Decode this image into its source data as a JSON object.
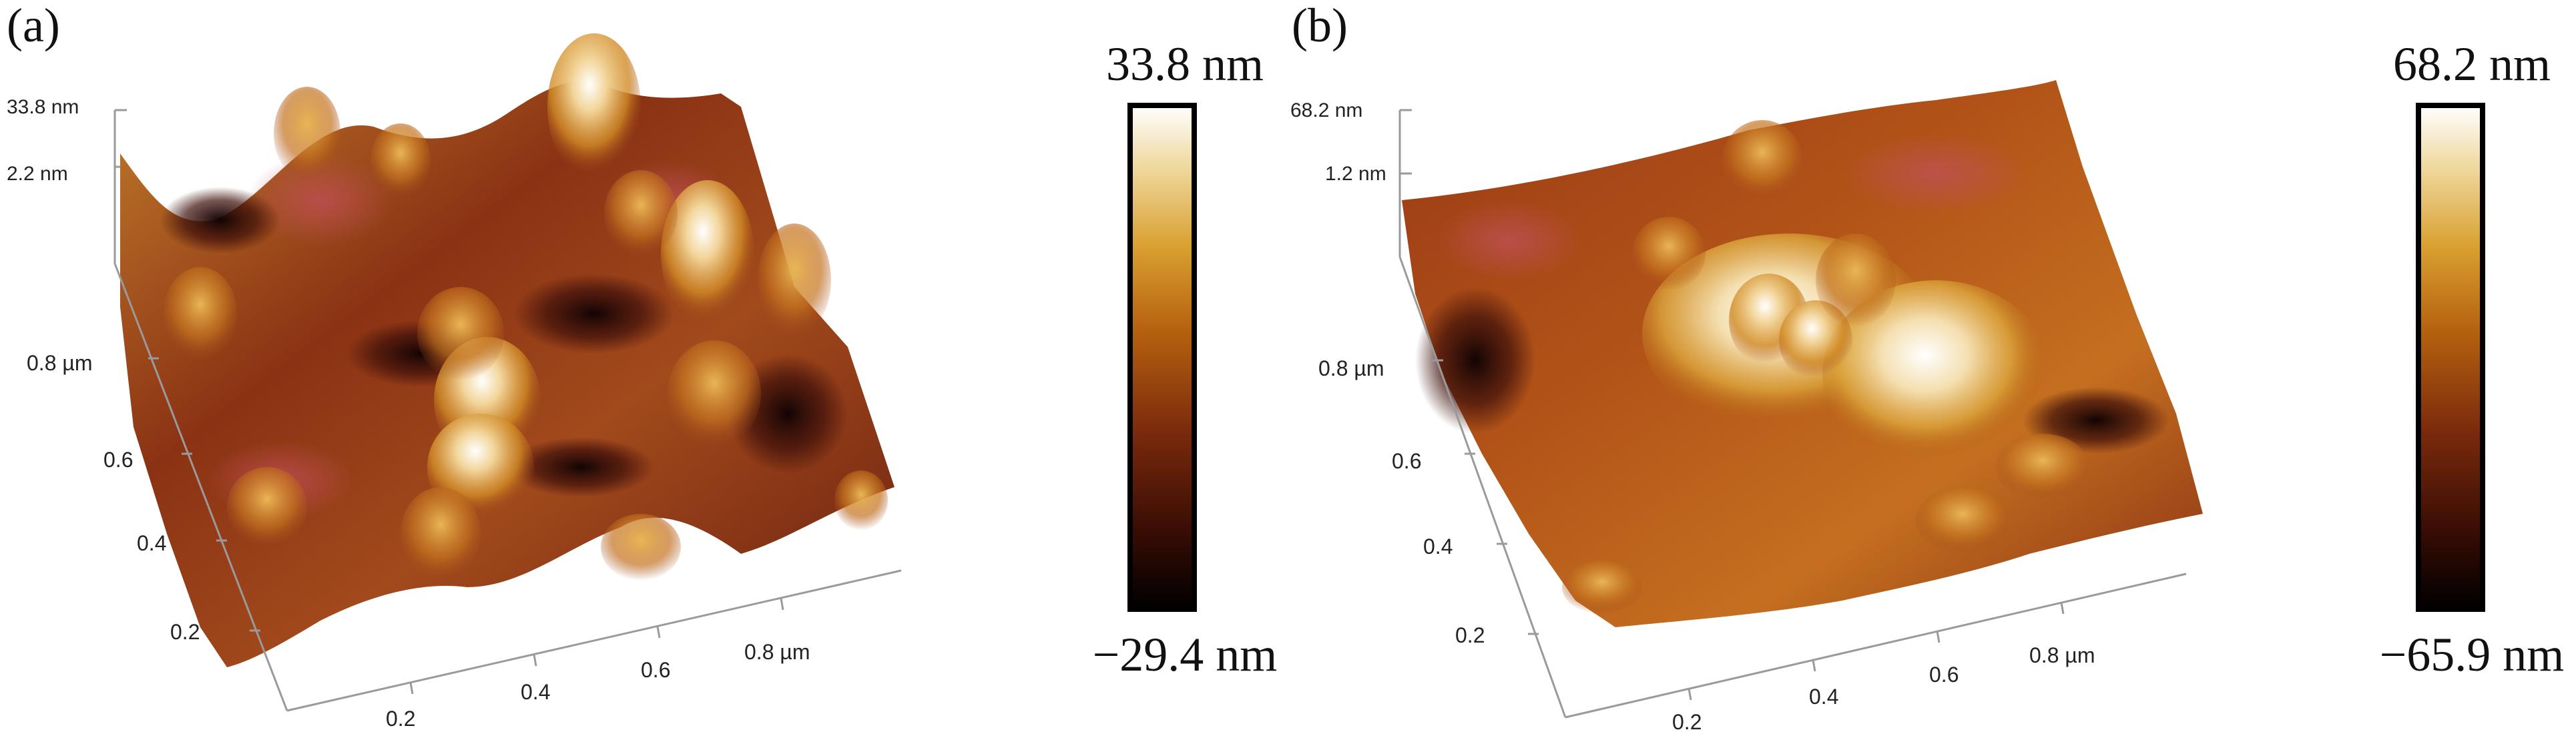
{
  "figure": {
    "panels": [
      {
        "panel_label": "(a)",
        "z_axis": {
          "top_label": "33.8 nm",
          "mid_label": "2.2 nm"
        },
        "left_axis": {
          "tick_labels": [
            "0.8 µm",
            "0.6",
            "0.4",
            "0.2"
          ]
        },
        "bottom_axis": {
          "tick_labels": [
            "0.2",
            "0.4",
            "0.6",
            "0.8 µm"
          ]
        },
        "colorbar": {
          "max_label": "33.8 nm",
          "min_label": "−29.4 nm"
        }
      },
      {
        "panel_label": "(b)",
        "z_axis": {
          "top_label": "68.2 nm",
          "mid_label": "1.2 nm"
        },
        "left_axis": {
          "tick_labels": [
            "0.8 µm",
            "0.6",
            "0.4",
            "0.2"
          ]
        },
        "bottom_axis": {
          "tick_labels": [
            "0.2",
            "0.4",
            "0.6",
            "0.8 µm"
          ]
        },
        "colorbar": {
          "max_label": "68.2 nm",
          "min_label": "−65.9 nm"
        }
      }
    ],
    "colors": {
      "colormap": [
        "#000000",
        "#3a0d05",
        "#7a2a0c",
        "#b5600f",
        "#d9a030",
        "#f0d9a0",
        "#ffffff"
      ],
      "surface_dark": "#2a0a08",
      "surface_mid": "#8b3214",
      "surface_highlight": "#e8a63a",
      "axis": "#9a9a9a"
    }
  }
}
